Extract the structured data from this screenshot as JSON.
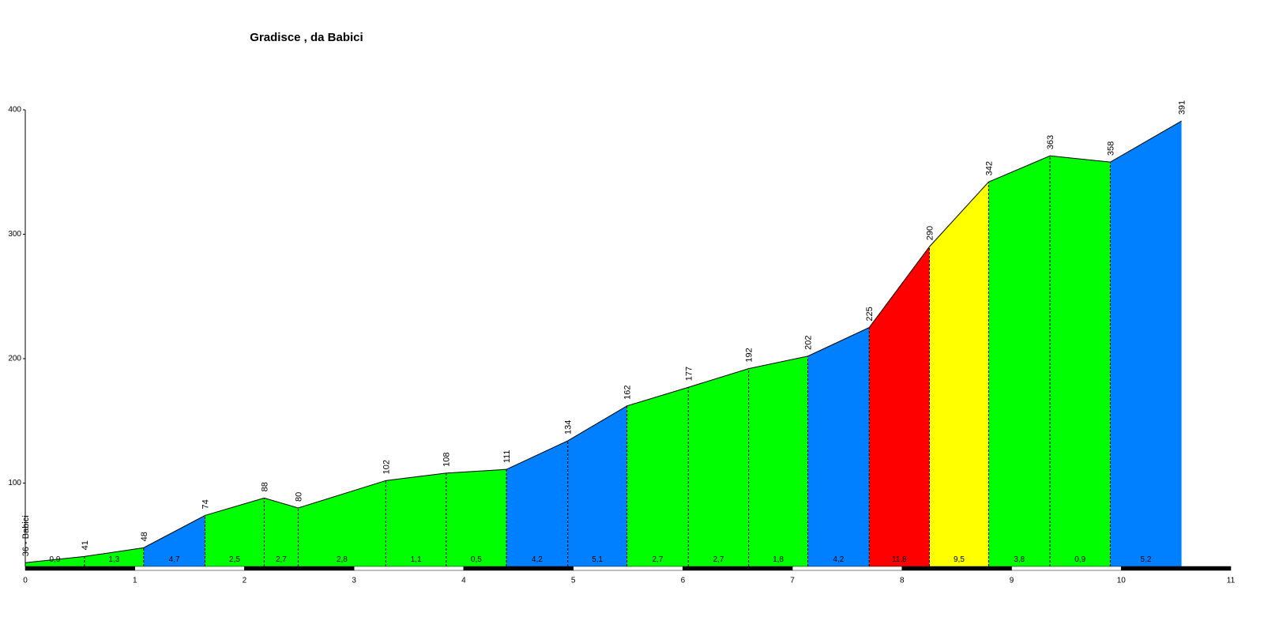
{
  "chart_data": {
    "type": "profile",
    "title": "Gradisce , da Babici",
    "x": [
      0,
      0.54,
      1.08,
      1.64,
      2.18,
      2.49,
      3.29,
      3.84,
      4.39,
      4.95,
      5.49,
      6.05,
      6.6,
      7.14,
      7.7,
      8.25,
      8.79,
      9.35,
      9.9,
      10.55
    ],
    "values": [
      36,
      41,
      48,
      74,
      88,
      80,
      102,
      108,
      111,
      134,
      162,
      177,
      192,
      202,
      225,
      290,
      342,
      363,
      358,
      391
    ],
    "value_labels": [
      "36 - Babici",
      "41",
      "48",
      "74",
      "88",
      "80",
      "102",
      "108",
      "111",
      "134",
      "162",
      "177",
      "192",
      "202",
      "225",
      "290",
      "342",
      "363",
      "358",
      "391"
    ],
    "gradients": [
      0.9,
      1.3,
      4.7,
      2.5,
      2.7,
      2.8,
      1.1,
      0.5,
      4.2,
      5.1,
      2.7,
      2.7,
      1.8,
      4.2,
      11.8,
      9.5,
      3.8,
      0.9,
      5.2
    ],
    "gradient_labels": [
      "0,9",
      "1,3",
      "4,7",
      "2,5",
      "2,7",
      "2,8",
      "1,1",
      "0,5",
      "4,2",
      "5,1",
      "2,7",
      "2,7",
      "1,8",
      "4,2",
      "11,8",
      "9,5",
      "3,8",
      "0,9",
      "5,2"
    ],
    "gradient_colors": [
      "#00ff00",
      "#00ff00",
      "#0080ff",
      "#00ff00",
      "#00ff00",
      "#00ff00",
      "#00ff00",
      "#00ff00",
      "#0080ff",
      "#0080ff",
      "#00ff00",
      "#00ff00",
      "#00ff00",
      "#0080ff",
      "#ff0000",
      "#ffff00",
      "#00ff00",
      "#00ff00",
      "#0080ff"
    ],
    "xlim": [
      0,
      11
    ],
    "xticks": [
      0,
      1,
      2,
      3,
      4,
      5,
      6,
      7,
      8,
      9,
      10,
      11
    ],
    "ylim": [
      33,
      400
    ],
    "yticks": [
      100,
      200,
      300,
      400
    ]
  }
}
